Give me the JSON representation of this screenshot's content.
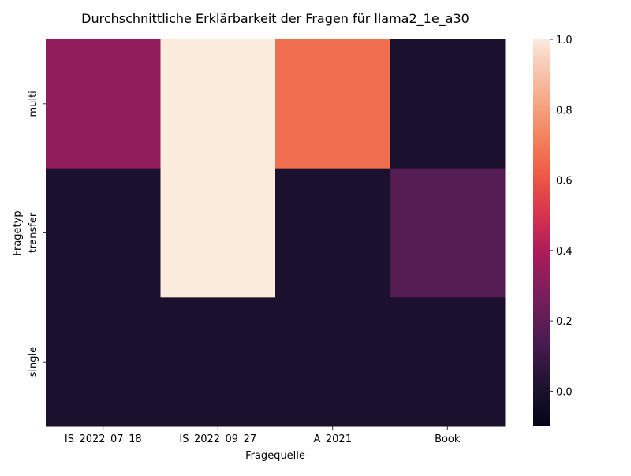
{
  "chart_data": {
    "type": "heatmap",
    "title": "Durchschnittliche Erklärbarkeit der Fragen für llama2_1e_a30",
    "xlabel": "Fragequelle",
    "ylabel": "Fragetyp",
    "x_categories": [
      "IS_2022_07_18",
      "IS_2022_09_27",
      "A_2021",
      "Book"
    ],
    "y_categories": [
      "multi",
      "transfer",
      "single"
    ],
    "values": [
      [
        0.33,
        1.0,
        0.67,
        0.0
      ],
      [
        0.0,
        1.0,
        0.0,
        0.17
      ],
      [
        0.0,
        0.0,
        0.0,
        0.0
      ]
    ],
    "colorbar": {
      "range": [
        -0.1,
        1.0
      ],
      "ticks": [
        1.0,
        0.8,
        0.6,
        0.4,
        0.2,
        0.0
      ],
      "tick_labels": [
        "1.0",
        "0.8",
        "0.6",
        "0.4",
        "0.2",
        "0.0"
      ]
    },
    "colormap": "rocket",
    "grid": false
  }
}
